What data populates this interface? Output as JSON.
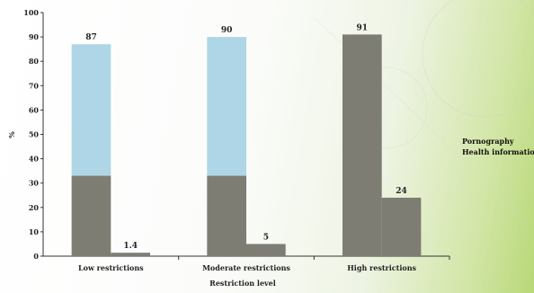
{
  "chart_data": {
    "type": "bar",
    "title": "",
    "xlabel": "Restriction level",
    "ylabel": "%",
    "ylim": [
      0,
      100
    ],
    "yticks": [
      0,
      10,
      20,
      30,
      40,
      50,
      60,
      70,
      80,
      90,
      100
    ],
    "categories": [
      "Low restrictions",
      "Moderate restrictions",
      "High restrictions"
    ],
    "series": [
      {
        "name": "Pornography",
        "values": [
          87,
          90,
          91
        ],
        "labels": [
          "87",
          "90",
          "91"
        ],
        "color": "#7e7d74",
        "overlay_top_color": "#aed6e6",
        "overlay_split_values": [
          33,
          33,
          null
        ]
      },
      {
        "name": "Health information",
        "values": [
          1.4,
          5,
          24
        ],
        "labels": [
          "1.4",
          "5",
          "24"
        ],
        "color": "#7e7d74"
      }
    ],
    "legend_position": "right",
    "grid": false
  }
}
